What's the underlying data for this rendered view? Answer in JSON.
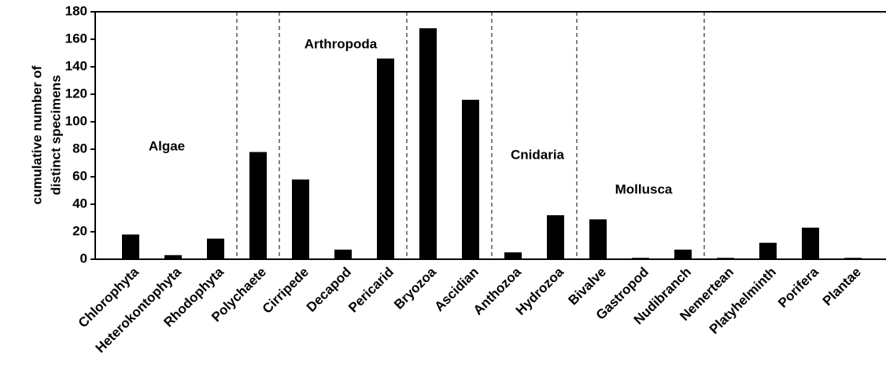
{
  "chart_data": {
    "type": "bar",
    "y_label": [
      "cumulative number of",
      "distinct specimens"
    ],
    "categories": [
      "Chlorophyta",
      "Heterokontophyta",
      "Rhodophyta",
      "Polychaete",
      "Cirripede",
      "Decapod",
      "Pericarid",
      "Bryozoa",
      "Ascidian",
      "Anthozoa",
      "Hydrozoa",
      "Bivalve",
      "Gastropod",
      "Nudibranch",
      "Nemertean",
      "Platyhelminth",
      "Porifera",
      "Plantae"
    ],
    "values": [
      18,
      3,
      15,
      78,
      58,
      7,
      146,
      168,
      116,
      5,
      32,
      29,
      1,
      7,
      1,
      12,
      23,
      1
    ],
    "color": "#000000",
    "ylim": [
      0,
      180
    ],
    "yticks": [
      0,
      20,
      40,
      60,
      80,
      100,
      120,
      140,
      160,
      180
    ],
    "annotations": [
      "Algae",
      "Arthropoda",
      "Cnidaria",
      "Mollusca"
    ]
  }
}
